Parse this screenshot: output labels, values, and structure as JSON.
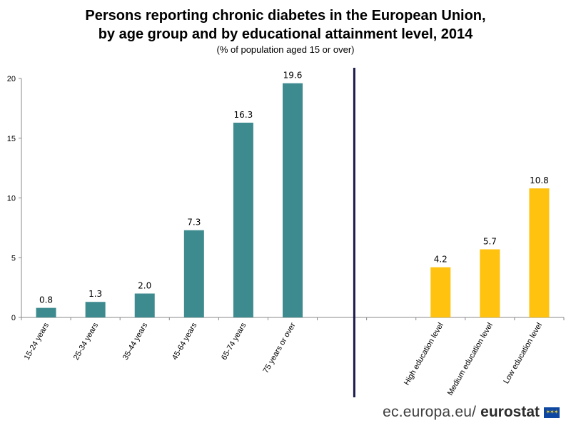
{
  "chart_data": {
    "type": "bar",
    "title_line1": "Persons reporting chronic diabetes in the European Union,",
    "title_line2": "by age group and by educational attainment level, 2014",
    "subtitle": "(% of population aged 15 or over)",
    "ylim": [
      0,
      20
    ],
    "yticks": [
      0,
      5,
      10,
      15,
      20
    ],
    "grid": false,
    "series": [
      {
        "categories": [
          "15-24 years",
          "25-34 years",
          "35-44 years",
          "45-64 years",
          "65-74 years",
          "75 years or over"
        ],
        "values": [
          0.8,
          1.3,
          2.0,
          7.3,
          16.3,
          19.6
        ],
        "labels": [
          "0.8",
          "1.3",
          "2.0",
          "7.3",
          "16.3",
          "19.6"
        ],
        "color": "#3d8b8f"
      },
      {
        "categories": [
          "High education level",
          "Medium education level",
          "Low education level"
        ],
        "values": [
          4.2,
          5.7,
          10.8
        ],
        "labels": [
          "4.2",
          "5.7",
          "10.8"
        ],
        "color": "#ffc20e"
      }
    ],
    "divider_color": "#1a1a4a"
  },
  "footer": {
    "site": "ec.europa.eu/",
    "brand": "eurostat"
  }
}
